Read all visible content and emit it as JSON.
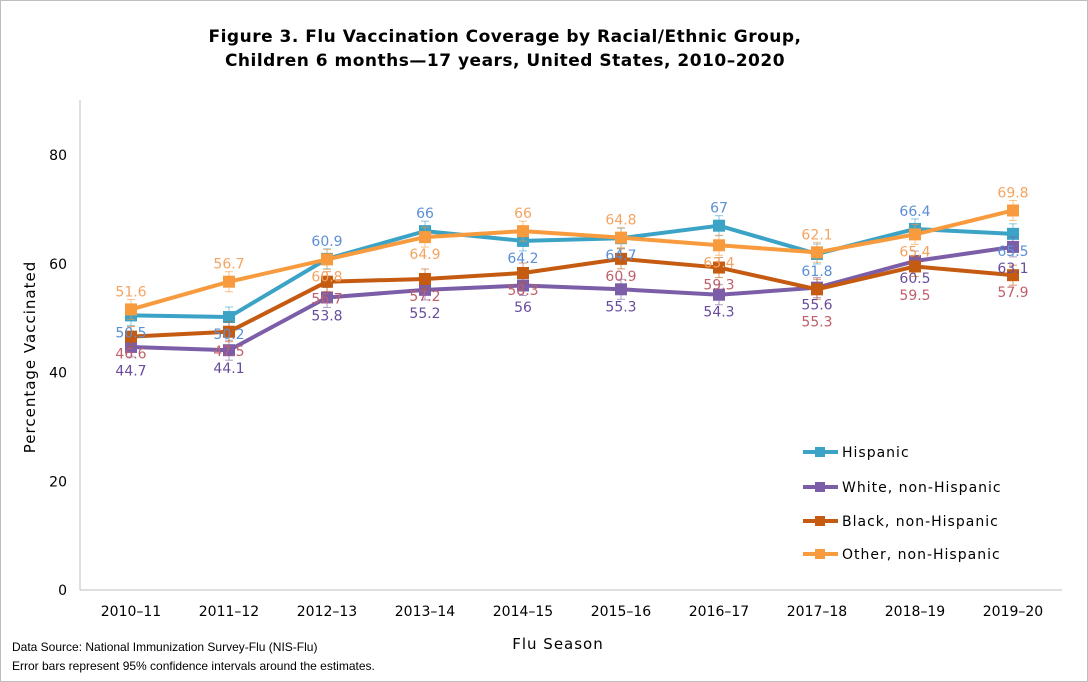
{
  "chart_data": {
    "type": "line",
    "title": "Figure 3. Flu Vaccination Coverage by Racial/Ethnic Group,",
    "subtitle": "Children 6 months—17 years, United States, 2010–2020",
    "xlabel": "Flu Season",
    "ylabel": "Percentage Vaccinated",
    "ylim": [
      0,
      90
    ],
    "yticks": [
      0,
      20,
      40,
      60,
      80
    ],
    "grid": false,
    "legend_position": "bottom-right",
    "categories": [
      "2010–11",
      "2011–12",
      "2012–13",
      "2013–14",
      "2014–15",
      "2015–16",
      "2016–17",
      "2017–18",
      "2018–19",
      "2019–20"
    ],
    "series": [
      {
        "name": "Hispanic",
        "color": "#3BA3C6",
        "label_color": "#5B8FD6",
        "values": [
          50.5,
          50.2,
          60.9,
          66.0,
          64.2,
          64.7,
          67.0,
          61.8,
          66.4,
          65.5
        ]
      },
      {
        "name": "White, non-Hispanic",
        "color": "#7B5EA7",
        "label_color": "#6A4C9C",
        "values": [
          44.7,
          44.1,
          53.8,
          55.2,
          56.0,
          55.3,
          54.3,
          55.6,
          60.5,
          63.1
        ]
      },
      {
        "name": "Black, non-Hispanic",
        "color": "#C55A11",
        "label_color": "#C0606A",
        "values": [
          46.6,
          47.5,
          56.7,
          57.2,
          58.3,
          60.9,
          59.3,
          55.3,
          59.5,
          57.9
        ]
      },
      {
        "name": "Other, non-Hispanic",
        "color": "#F79B3E",
        "label_color": "#F4A460",
        "values": [
          51.6,
          56.7,
          60.8,
          64.9,
          66.0,
          64.8,
          63.4,
          62.1,
          65.4,
          69.8
        ]
      }
    ],
    "error_bars": "95% confidence intervals"
  },
  "footer": {
    "source": "Data Source: National Immunization Survey-Flu (NIS-Flu)",
    "note": "Error bars represent 95% confidence intervals around the estimates."
  }
}
